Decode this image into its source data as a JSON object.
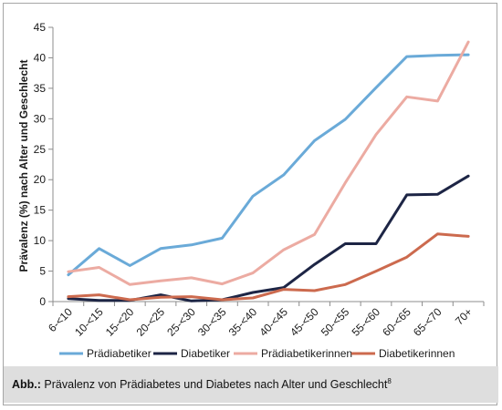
{
  "chart_data": {
    "type": "line",
    "categories": [
      "6-<10",
      "10-<15",
      "15-<20",
      "20-<25",
      "25-<30",
      "30-<35",
      "35-<40",
      "40-<45",
      "45-<50",
      "50-<55",
      "55-<60",
      "60-<65",
      "65-<70",
      "70+"
    ],
    "ylabel": "Prävalenz (%) nach Alter und Geschlecht",
    "ylim": [
      0,
      45
    ],
    "yticks": [
      0,
      5,
      10,
      15,
      20,
      25,
      30,
      35,
      40,
      45
    ],
    "grid": false,
    "legend_position": "bottom",
    "series": [
      {
        "name": "Prädiabetiker",
        "color": "#6aaad8",
        "values": [
          4.4,
          8.7,
          5.9,
          8.7,
          9.3,
          10.4,
          17.3,
          20.8,
          26.4,
          29.9,
          35.1,
          40.2,
          40.4,
          40.5
        ]
      },
      {
        "name": "Diabetiker",
        "color": "#1d2545",
        "values": [
          0.5,
          0.2,
          0.2,
          1.1,
          0.1,
          0.3,
          1.5,
          2.3,
          6.1,
          9.5,
          9.5,
          17.5,
          17.6,
          20.6
        ]
      },
      {
        "name": "Prädiabetikerinnen",
        "color": "#ecaba2",
        "values": [
          4.9,
          5.6,
          2.8,
          3.4,
          3.9,
          2.9,
          4.7,
          8.5,
          11.0,
          19.5,
          27.4,
          33.6,
          32.9,
          42.6
        ]
      },
      {
        "name": "Diabetikerinnen",
        "color": "#cc6a4e",
        "values": [
          0.8,
          1.1,
          0.3,
          0.7,
          0.8,
          0.3,
          0.6,
          2.0,
          1.8,
          2.8,
          5.0,
          7.3,
          11.1,
          10.7
        ]
      }
    ]
  },
  "caption": {
    "label": "Abb.:",
    "text": " Prävalenz von Prädiabetes und Diabetes nach Alter und Geschlecht",
    "ref": "8"
  }
}
